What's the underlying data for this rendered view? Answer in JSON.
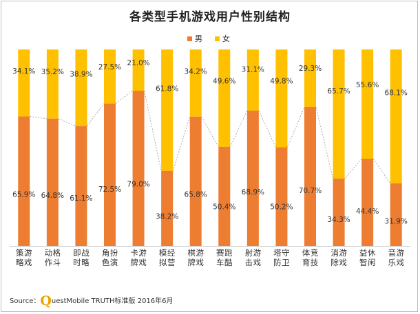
{
  "colors": {
    "male": "#ED7D31",
    "female": "#FFC000",
    "connector": "#9a9a9a",
    "axis": "#cfcfcf",
    "label": "#333333"
  },
  "chart_data": {
    "type": "bar",
    "stacked": true,
    "percent": true,
    "title": "各类型手机游戏用户性别结构",
    "legend": {
      "position": "top-center",
      "entries": [
        "男",
        "女"
      ]
    },
    "categories": [
      "策略游戏",
      "动作格斗",
      "即时战略",
      "角色扮演",
      "卡牌游戏",
      "模拟经营",
      "棋牌游戏",
      "赛车跑酷",
      "射击游戏",
      "塔防守卫",
      "体育竞技",
      "消除游戏",
      "益智休闲",
      "音乐游戏"
    ],
    "series": [
      {
        "name": "男",
        "values": [
          65.9,
          64.8,
          61.1,
          72.5,
          79.0,
          38.2,
          65.8,
          50.4,
          68.9,
          50.2,
          70.7,
          34.3,
          44.4,
          31.9
        ],
        "labels": [
          "65.9%",
          "64.8%",
          "61.1%",
          "72.5%",
          "79.0%",
          "38.2%",
          "65.8%",
          "50.4%",
          "68.9%",
          "50.2%",
          "70.7%",
          "34.3%",
          "44.4%",
          "31.9%"
        ]
      },
      {
        "name": "女",
        "values": [
          34.1,
          35.2,
          38.9,
          27.5,
          21.0,
          61.8,
          34.2,
          49.6,
          31.1,
          49.8,
          29.3,
          65.7,
          55.6,
          68.1
        ],
        "labels": [
          "34.1%",
          "35.2%",
          "38.9%",
          "27.5%",
          "21.0%",
          "61.8%",
          "34.2%",
          "49.6%",
          "31.1%",
          "49.8%",
          "29.3%",
          "65.7%",
          "55.6%",
          "68.1%"
        ]
      }
    ],
    "ylim": [
      0,
      100
    ],
    "grid": false,
    "series_lines": true
  },
  "source": {
    "label": "Source：",
    "logo_letter": "Q",
    "text": "uestMobile TRUTH标准版 2016年6月"
  }
}
